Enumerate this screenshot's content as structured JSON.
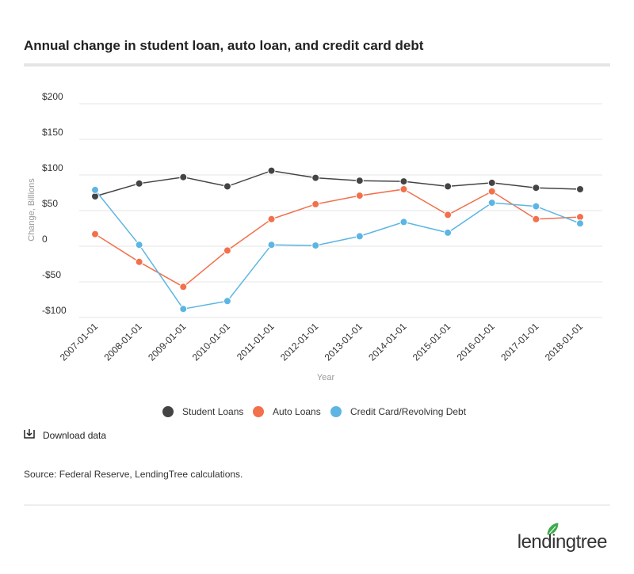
{
  "chart_data": {
    "type": "line",
    "title": "Annual change in student loan, auto loan, and credit card debt",
    "y_label": "Change, Billions",
    "x_label": "Year",
    "categories": [
      "2007-01-01",
      "2008-01-01",
      "2009-01-01",
      "2010-01-01",
      "2011-01-01",
      "2012-01-01",
      "2013-01-01",
      "2014-01-01",
      "2015-01-01",
      "2016-01-01",
      "2017-01-01",
      "2018-01-01"
    ],
    "series": [
      {
        "name": "Student Loans",
        "color": "#444444",
        "values": [
          70,
          88,
          97,
          84,
          106,
          96,
          92,
          91,
          84,
          89,
          82,
          80
        ]
      },
      {
        "name": "Auto Loans",
        "color": "#f2704b",
        "values": [
          17,
          -22,
          -57,
          -6,
          38,
          59,
          71,
          80,
          44,
          77,
          38,
          41
        ]
      },
      {
        "name": "Credit Card/Revolving Debt",
        "color": "#5db5e3",
        "values": [
          79,
          2,
          -88,
          -77,
          2,
          1,
          14,
          34,
          19,
          61,
          56,
          32
        ]
      }
    ],
    "ylim": [
      -100,
      200
    ],
    "yticks": [
      {
        "value": -100,
        "label": "-$100"
      },
      {
        "value": -50,
        "label": "-$50"
      },
      0,
      {
        "value": 50,
        "label": "$50"
      },
      {
        "value": 100,
        "label": "$100"
      },
      {
        "value": 150,
        "label": "$150"
      },
      {
        "value": 200,
        "label": "$200"
      }
    ],
    "grid": true
  },
  "download_label": "Download data",
  "source": "Source: Federal Reserve, LendingTree calculations.",
  "logo": "lendingtree"
}
